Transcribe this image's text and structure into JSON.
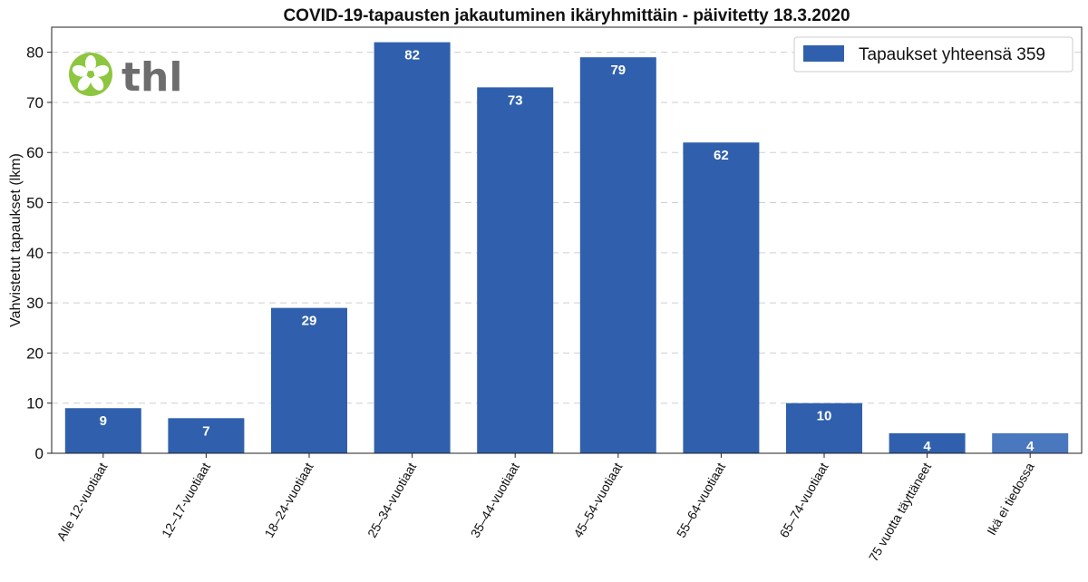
{
  "chart_data": {
    "type": "bar",
    "title": "COVID-19-tapausten jakautuminen ikäryhmittäin - päivitetty 18.3.2020",
    "xlabel": "",
    "ylabel": "Vahvistetut tapaukset (lkm)",
    "ylim": [
      0,
      85
    ],
    "yticks": [
      0,
      10,
      20,
      30,
      40,
      50,
      60,
      70,
      80
    ],
    "grid": true,
    "legend_position": "top-right",
    "categories": [
      "Alle 12-vuotiaat",
      "12–17-vuotiaat",
      "18–24-vuotiaat",
      "25–34-vuotiaat",
      "35–44-vuotiaat",
      "45–54-vuotiaat",
      "55–64-vuotiaat",
      "65–74-vuotiaat",
      "75 vuotta täyttäneet",
      "Ikä ei tiedossa"
    ],
    "series": [
      {
        "name": "Tapaukset yhteensä 359",
        "values": [
          9,
          7,
          29,
          82,
          73,
          79,
          62,
          10,
          4,
          4
        ],
        "color": "#3060ad",
        "highlight_color": "#4a78bf"
      }
    ]
  },
  "logo": {
    "text": "thl",
    "color": "#8dc63f",
    "text_color": "#6d6d6d"
  }
}
